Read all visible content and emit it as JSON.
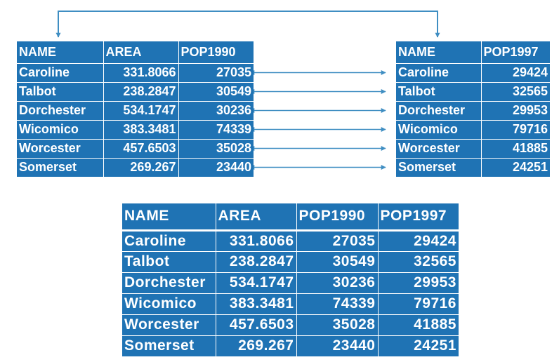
{
  "table1": {
    "headers": [
      "NAME",
      "AREA",
      "POP1990"
    ],
    "rows": [
      [
        "Caroline",
        "331.8066",
        "27035"
      ],
      [
        "Talbot",
        "238.2847",
        "30549"
      ],
      [
        "Dorchester",
        "534.1747",
        "30236"
      ],
      [
        "Wicomico",
        "383.3481",
        "74339"
      ],
      [
        "Worcester",
        "457.6503",
        "35028"
      ],
      [
        "Somerset",
        "269.267",
        "23440"
      ]
    ]
  },
  "table2": {
    "headers": [
      "NAME",
      "POP1997"
    ],
    "rows": [
      [
        "Caroline",
        "29424"
      ],
      [
        "Talbot",
        "32565"
      ],
      [
        "Dorchester",
        "29953"
      ],
      [
        "Wicomico",
        "79716"
      ],
      [
        "Worcester",
        "41885"
      ],
      [
        "Somerset",
        "24251"
      ]
    ]
  },
  "table3": {
    "headers": [
      "NAME",
      "AREA",
      "POP1990",
      "POP1997"
    ],
    "rows": [
      [
        "Caroline",
        "331.8066",
        "27035",
        "29424"
      ],
      [
        "Talbot",
        "238.2847",
        "30549",
        "32565"
      ],
      [
        "Dorchester",
        "534.1747",
        "30236",
        "29953"
      ],
      [
        "Wicomico",
        "383.3481",
        "74339",
        "79716"
      ],
      [
        "Worcester",
        "457.6503",
        "35028",
        "41885"
      ],
      [
        "Somerset",
        "269.267",
        "23440",
        "24251"
      ]
    ]
  },
  "colors": {
    "cell_fill": "#1f73b4",
    "cell_text": "#ffffff",
    "connector": "#3f8ec2"
  }
}
